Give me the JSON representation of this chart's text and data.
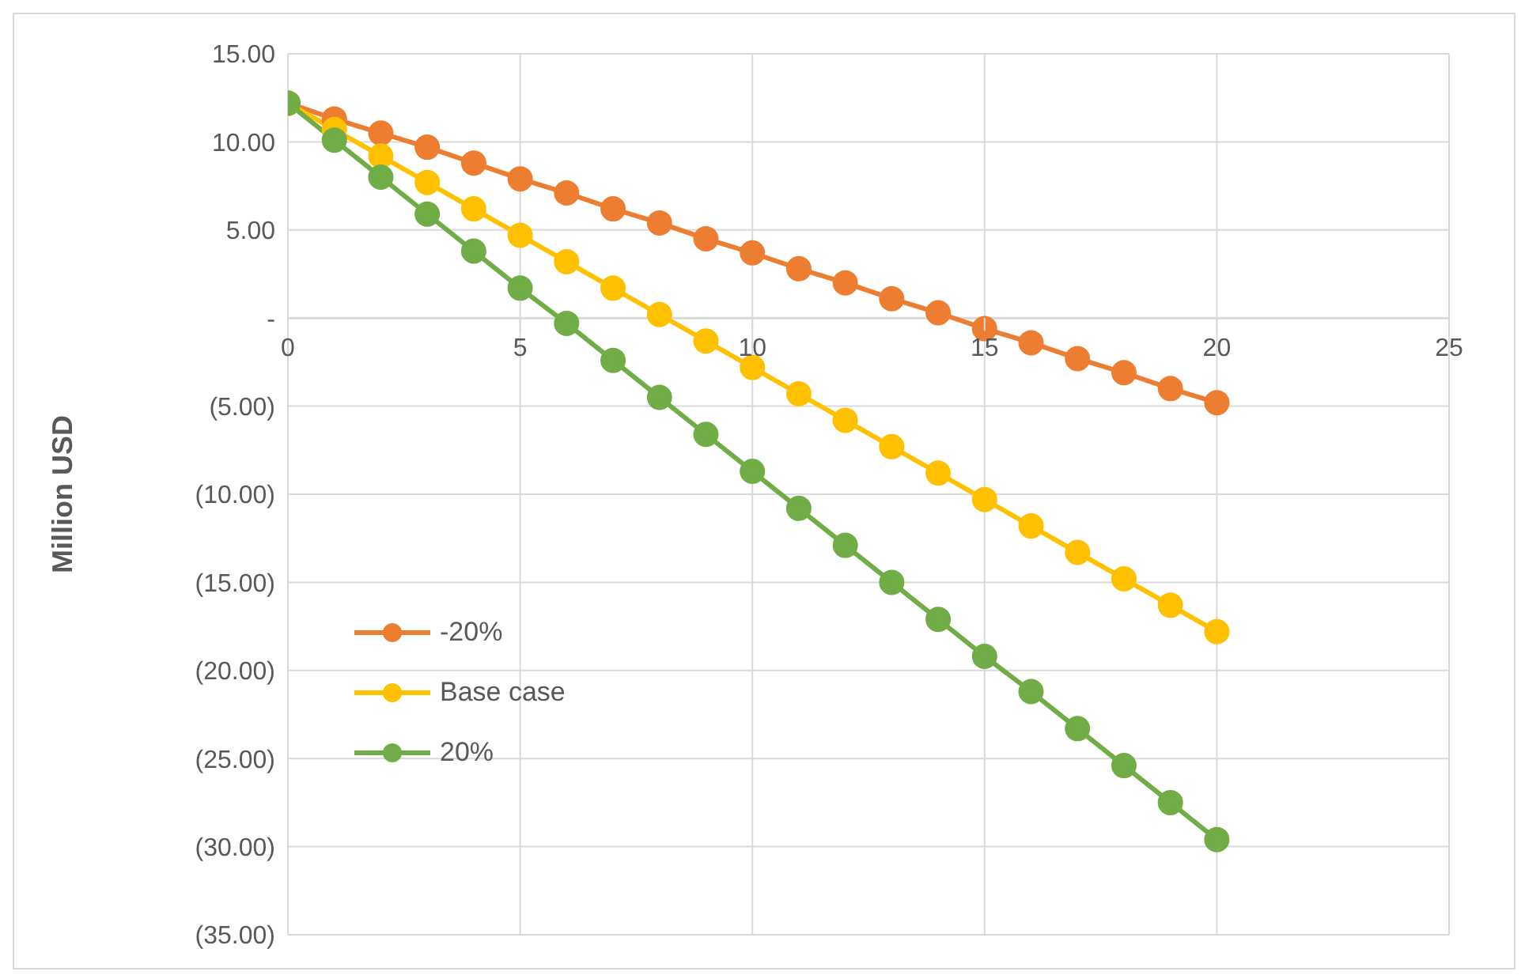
{
  "chart_data": {
    "type": "line",
    "ylabel": "Million USD",
    "x": [
      0,
      1,
      2,
      3,
      4,
      5,
      6,
      7,
      8,
      9,
      10,
      11,
      12,
      13,
      14,
      15,
      16,
      17,
      18,
      19,
      20
    ],
    "series": [
      {
        "name": "-20%",
        "color": "#ed7d31",
        "values": [
          12.2,
          11.3,
          10.5,
          9.7,
          8.8,
          7.9,
          7.1,
          6.2,
          5.4,
          4.5,
          3.7,
          2.8,
          2.0,
          1.1,
          0.3,
          -0.6,
          -1.4,
          -2.3,
          -3.1,
          -4.0,
          -4.8
        ]
      },
      {
        "name": "Base case",
        "color": "#ffc000",
        "values": [
          12.2,
          10.7,
          9.2,
          7.7,
          6.2,
          4.7,
          3.2,
          1.7,
          0.2,
          -1.3,
          -2.8,
          -4.3,
          -5.8,
          -7.3,
          -8.8,
          -10.3,
          -11.8,
          -13.3,
          -14.8,
          -16.3,
          -17.8
        ]
      },
      {
        "name": "20%",
        "color": "#70ad47",
        "values": [
          12.2,
          10.1,
          8.0,
          5.9,
          3.8,
          1.7,
          -0.3,
          -2.4,
          -4.5,
          -6.6,
          -8.7,
          -10.8,
          -12.9,
          -15.0,
          -17.1,
          -19.2,
          -21.2,
          -23.3,
          -25.4,
          -27.5,
          -29.6
        ]
      }
    ],
    "xlim": [
      0,
      25
    ],
    "xticks": [
      0,
      5,
      10,
      15,
      20,
      25
    ],
    "ylim": [
      -35,
      15
    ],
    "yticks": [
      {
        "value": 15,
        "label": "15.00"
      },
      {
        "value": 10,
        "label": "10.00"
      },
      {
        "value": 5,
        "label": "5.00"
      },
      {
        "value": 0,
        "label": "-"
      },
      {
        "value": -5,
        "label": "(5.00)"
      },
      {
        "value": -10,
        "label": "(10.00)"
      },
      {
        "value": -15,
        "label": "(15.00)"
      },
      {
        "value": -20,
        "label": "(20.00)"
      },
      {
        "value": -25,
        "label": "(25.00)"
      },
      {
        "value": -30,
        "label": "(30.00)"
      },
      {
        "value": -35,
        "label": "(35.00)"
      }
    ],
    "grid": true,
    "legend": "bottom left",
    "marker": "circle",
    "line_style": "solid"
  }
}
